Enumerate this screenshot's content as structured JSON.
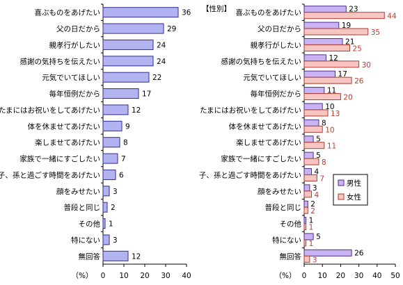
{
  "chart_data": [
    {
      "type": "bar",
      "orientation": "horizontal",
      "categories": [
        "喜ぶものをあげたい",
        "父の日だから",
        "親孝行がしたい",
        "感謝の気持ちを伝えたい",
        "元気でいてほしい",
        "毎年恒例だから",
        "たまにはお祝いをしてあげたい",
        "体を休ませてあげたい",
        "楽しませてあげたい",
        "家族で一緒にすごしたい",
        "子、孫と過ごす時間をあげたい",
        "顔をみせたい",
        "普段と同じ",
        "その他",
        "特にない",
        "無回答"
      ],
      "series": [
        {
          "values": [
            36,
            29,
            24,
            24,
            22,
            17,
            12,
            9,
            8,
            7,
            6,
            3,
            2,
            1,
            3,
            12
          ],
          "color": "#b3b3f2"
        }
      ],
      "xlim": [
        0,
        40
      ],
      "xticks": [
        0,
        10,
        20,
        30,
        40
      ],
      "unit_label": "（%）",
      "grid": false,
      "title": ""
    },
    {
      "type": "bar",
      "orientation": "horizontal",
      "title": "【性別】",
      "categories": [
        "喜ぶものをあげたい",
        "父の日だから",
        "親孝行がしたい",
        "感謝の気持ちを伝えたい",
        "元気でいてほしい",
        "毎年恒例だから",
        "たまにはお祝いをしてあげたい",
        "体を休ませてあげたい",
        "楽しませてあげたい",
        "家族で一緒にすごしたい",
        "子、孫と過ごす時間をあげたい",
        "顔をみせたい",
        "普段と同じ",
        "その他",
        "特にない",
        "無回答"
      ],
      "series": [
        {
          "name": "男性",
          "values": [
            23,
            19,
            21,
            12,
            17,
            11,
            10,
            8,
            5,
            5,
            4,
            3,
            2,
            1,
            5,
            26
          ],
          "color": "#c9b3f2"
        },
        {
          "name": "女性",
          "values": [
            44,
            35,
            25,
            30,
            26,
            20,
            13,
            10,
            11,
            8,
            7,
            4,
            2,
            1,
            1,
            3
          ],
          "color": "#f7c6c2"
        }
      ],
      "xlim": [
        0,
        50
      ],
      "xticks": [
        0,
        10,
        20,
        30,
        40,
        50
      ],
      "unit_label": "（%）",
      "legend": "right-middle",
      "grid": false
    }
  ]
}
